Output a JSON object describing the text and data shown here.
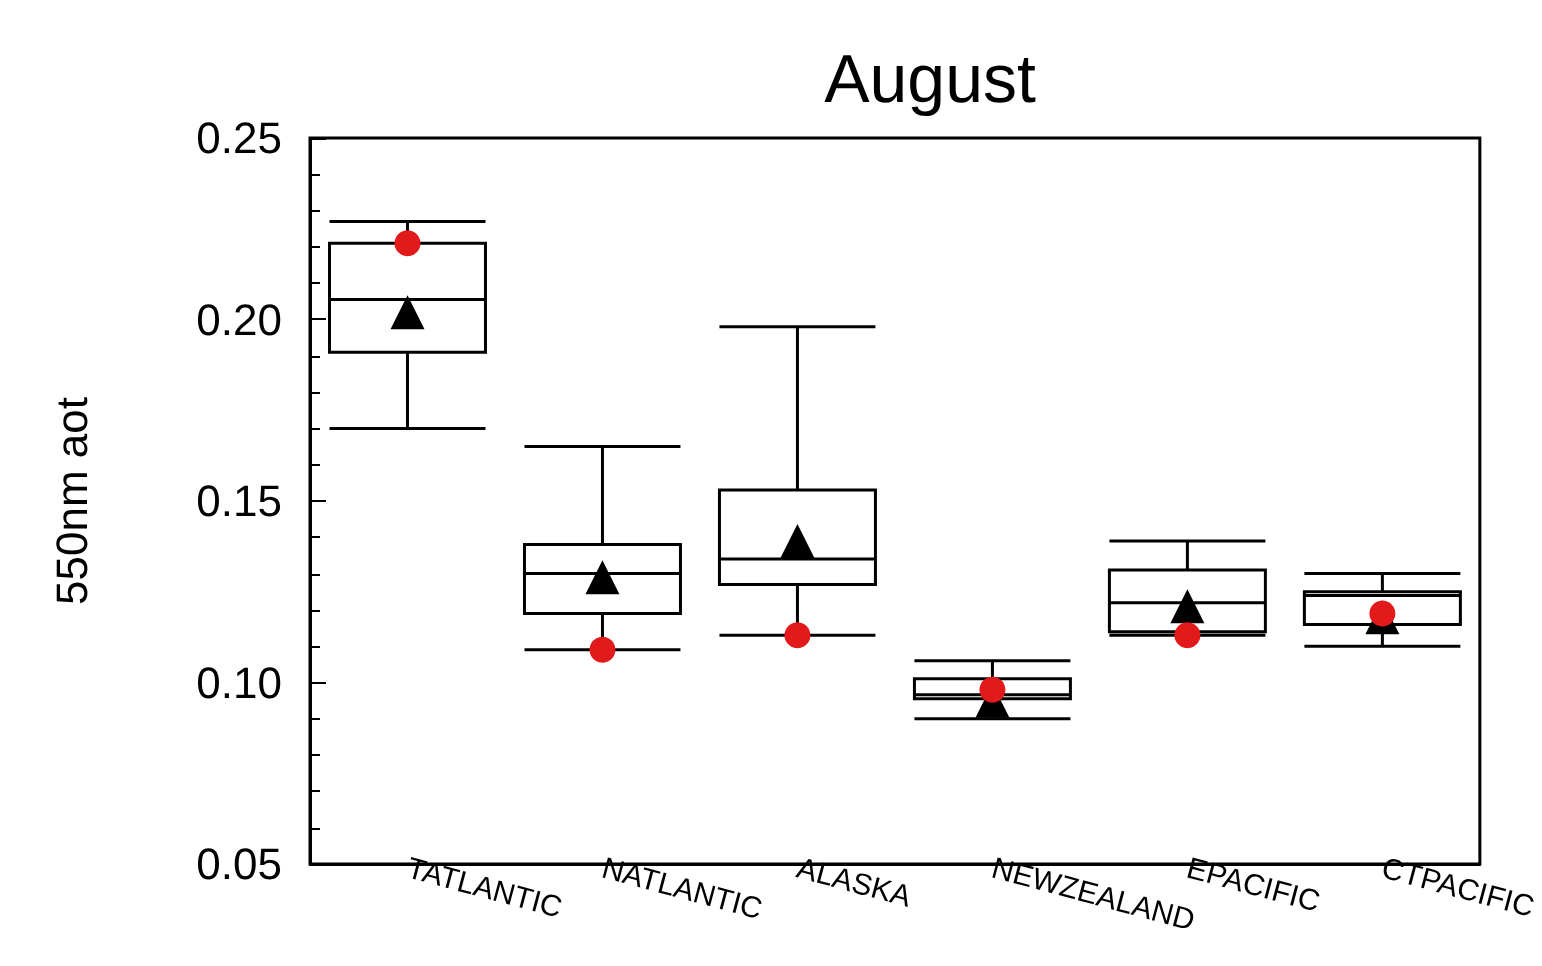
{
  "chart_data": {
    "type": "box",
    "title": "August",
    "ylabel": "550nm aot",
    "categories": [
      "TATLANTIC",
      "NATLANTIC",
      "ALASKA",
      "NEWZEALAND",
      "EPACIFIC",
      "CTPACIFIC"
    ],
    "ylim": [
      0.05,
      0.25
    ],
    "yticks": [
      {
        "value": 0.05,
        "label": "0.05"
      },
      {
        "value": 0.1,
        "label": "0.10"
      },
      {
        "value": 0.15,
        "label": "0.15"
      },
      {
        "value": 0.2,
        "label": "0.20"
      },
      {
        "value": 0.25,
        "label": "0.25"
      }
    ],
    "series": [
      {
        "color": "#000000",
        "marker": "triangle",
        "boxes": [
          {
            "low": 0.17,
            "q1": 0.191,
            "median": 0.2055,
            "q3": 0.221,
            "high": 0.227,
            "mean": 0.202
          },
          {
            "low": 0.109,
            "q1": 0.119,
            "median": 0.13,
            "q3": 0.138,
            "high": 0.165,
            "mean": 0.129
          },
          {
            "low": 0.113,
            "q1": 0.127,
            "median": 0.134,
            "q3": 0.153,
            "high": 0.198,
            "mean": 0.139
          },
          {
            "low": 0.09,
            "q1": 0.0955,
            "median": 0.0966,
            "q3": 0.101,
            "high": 0.106,
            "mean": 0.095
          },
          {
            "low": 0.113,
            "q1": 0.114,
            "median": 0.122,
            "q3": 0.131,
            "high": 0.139,
            "mean": 0.121
          },
          {
            "low": 0.11,
            "q1": 0.116,
            "median": 0.124,
            "q3": 0.125,
            "high": 0.13,
            "mean": 0.118
          }
        ]
      },
      {
        "type": "scatter",
        "color": "#e31a1c",
        "marker": "circle",
        "x": [
          "TATLANTIC",
          "NATLANTIC",
          "ALASKA",
          "NEWZEALAND",
          "EPACIFIC",
          "CTPACIFIC"
        ],
        "values": [
          0.221,
          0.109,
          0.113,
          0.098,
          0.113,
          0.119
        ]
      }
    ]
  }
}
